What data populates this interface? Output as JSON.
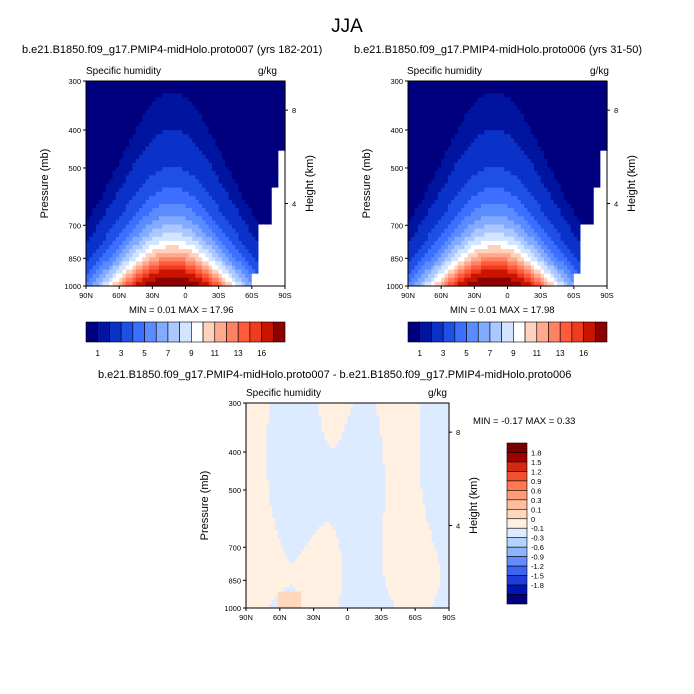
{
  "page_title": "JJA",
  "colors": {
    "abs_scale": [
      "#00007f",
      "#0014a0",
      "#0a32c8",
      "#1e50e6",
      "#3c6eff",
      "#5a8cff",
      "#82aaff",
      "#aac8ff",
      "#d2e4ff",
      "#ffffff",
      "#ffd2be",
      "#ffaa8c",
      "#ff8264",
      "#ff5a3c",
      "#f03c1e",
      "#c81400",
      "#8c0000"
    ],
    "diff_scale": [
      "#00007f",
      "#0014b4",
      "#1e3cdc",
      "#3c64f0",
      "#648cff",
      "#8cb4ff",
      "#b4d2ff",
      "#dcebff",
      "#fff0e1",
      "#ffd7be",
      "#ffbe9b",
      "#ff9b78",
      "#ff7850",
      "#f0502d",
      "#d22814",
      "#a00000",
      "#7a0000"
    ]
  },
  "chart_data": [
    {
      "type": "heatmap",
      "panel": "left",
      "title": "b.e21.B1850.f09_g17.PMIP4-midHolo.proto007 (yrs 182-201)",
      "variable": "Specific humidity",
      "units": "g/kg",
      "ylabel": "Pressure (mb)",
      "y2label": "Height (km)",
      "x_ticks": [
        "90N",
        "60N",
        "30N",
        "0",
        "30S",
        "60S",
        "90S"
      ],
      "y_ticks": [
        "300",
        "400",
        "500",
        "700",
        "850",
        "1000"
      ],
      "y2_ticks": [
        "8",
        "4"
      ],
      "stats": "MIN =  0.01  MAX =  17.96",
      "colorbar_labels": [
        "1",
        "3",
        "5",
        "7",
        "9",
        "11",
        "13",
        "16"
      ]
    },
    {
      "type": "heatmap",
      "panel": "right",
      "title": "b.e21.B1850.f09_g17.PMIP4-midHolo.proto006 (yrs 31-50)",
      "variable": "Specific humidity",
      "units": "g/kg",
      "ylabel": "Pressure (mb)",
      "y2label": "Height (km)",
      "x_ticks": [
        "90N",
        "60N",
        "30N",
        "0",
        "30S",
        "60S",
        "90S"
      ],
      "y_ticks": [
        "300",
        "400",
        "500",
        "700",
        "850",
        "1000"
      ],
      "y2_ticks": [
        "8",
        "4"
      ],
      "stats": "MIN =  0.01  MAX =  17.98",
      "colorbar_labels": [
        "1",
        "3",
        "5",
        "7",
        "9",
        "11",
        "13",
        "16"
      ]
    },
    {
      "type": "heatmap",
      "panel": "difference",
      "title": "b.e21.B1850.f09_g17.PMIP4-midHolo.proto007 - b.e21.B1850.f09_g17.PMIP4-midHolo.proto006",
      "variable": "Specific humidity",
      "units": "g/kg",
      "ylabel": "Pressure (mb)",
      "y2label": "Height (km)",
      "x_ticks": [
        "90N",
        "60N",
        "30N",
        "0",
        "30S",
        "60S",
        "90S"
      ],
      "y_ticks": [
        "300",
        "400",
        "500",
        "700",
        "850",
        "1000"
      ],
      "y2_ticks": [
        "8",
        "4"
      ],
      "stats": "MIN = -0.17  MAX =   0.33",
      "colorbar_labels": [
        "1.8",
        "1.5",
        "1.2",
        "0.9",
        "0.6",
        "0.3",
        "0.1",
        "0",
        "-0.1",
        "-0.3",
        "-0.6",
        "-0.9",
        "-1.2",
        "-1.5",
        "-1.8"
      ]
    }
  ]
}
